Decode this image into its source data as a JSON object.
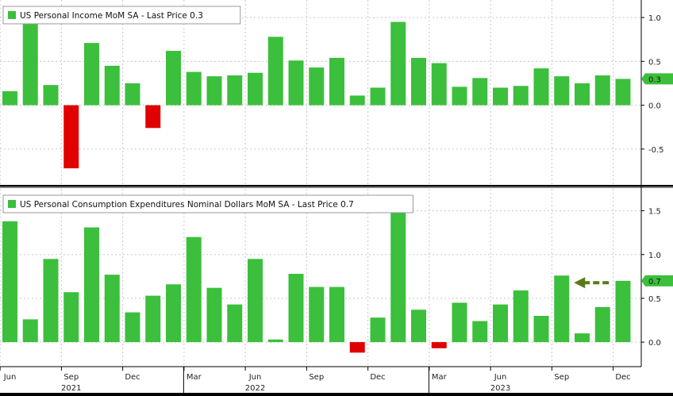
{
  "chart_data": [
    {
      "type": "bar",
      "title": "US Personal Income MoM SA - Last Price 0.3",
      "last_price": "0.3",
      "ylim": [
        -0.9,
        1.2
      ],
      "yticks": [
        1.0,
        0.5,
        0.0,
        -0.5
      ],
      "ytick_labels": [
        "1.0",
        "0.5",
        "0.0",
        "-0.5"
      ],
      "grid": true,
      "legend_position": "top-left",
      "values": [
        0.16,
        1.05,
        0.23,
        -0.72,
        0.71,
        0.45,
        0.25,
        -0.26,
        0.62,
        0.38,
        0.33,
        0.34,
        0.37,
        0.78,
        0.51,
        0.43,
        0.54,
        0.11,
        0.2,
        0.95,
        0.54,
        0.48,
        0.21,
        0.31,
        0.2,
        0.22,
        0.42,
        0.33,
        0.25,
        0.34,
        0.3
      ]
    },
    {
      "type": "bar",
      "title": "US Personal Consumption Expenditures Nominal Dollars MoM SA - Last Price 0.7",
      "last_price": "0.7",
      "ylim": [
        -0.28,
        1.75
      ],
      "yticks": [
        1.5,
        1.0,
        0.5,
        0.0
      ],
      "ytick_labels": [
        "1.5",
        "1.0",
        "0.5",
        "0.0"
      ],
      "grid": true,
      "legend_position": "top-left",
      "values": [
        1.38,
        0.26,
        0.95,
        0.57,
        1.31,
        0.77,
        0.34,
        0.53,
        0.66,
        1.2,
        0.62,
        0.43,
        0.95,
        0.03,
        0.78,
        0.63,
        0.63,
        -0.12,
        0.28,
        1.6,
        0.37,
        -0.07,
        0.45,
        0.24,
        0.43,
        0.59,
        0.3,
        0.76,
        0.1,
        0.4,
        0.7
      ]
    }
  ],
  "x_axis": {
    "months": [
      "Jun",
      "Sep",
      "Dec",
      "Mar",
      "Jun",
      "Sep",
      "Dec",
      "Mar",
      "Jun",
      "Sep",
      "Dec"
    ],
    "month_bar_index": [
      0,
      3,
      6,
      9,
      12,
      15,
      18,
      21,
      24,
      27,
      30
    ],
    "years": [
      "2021",
      "2022",
      "2023"
    ],
    "year_bar_index": [
      3,
      12,
      24
    ]
  },
  "annotation": {
    "type": "dashed-arrow",
    "points_to_bar_index": 27
  },
  "colors": {
    "background": "#ffffff",
    "positive_bar": "#3cbf3c",
    "negative_bar": "#e00000",
    "price_tag": "#3cbf3c",
    "arrow": "#5a7a1a",
    "grid": "#c8c8c8",
    "divider": "#000000"
  }
}
